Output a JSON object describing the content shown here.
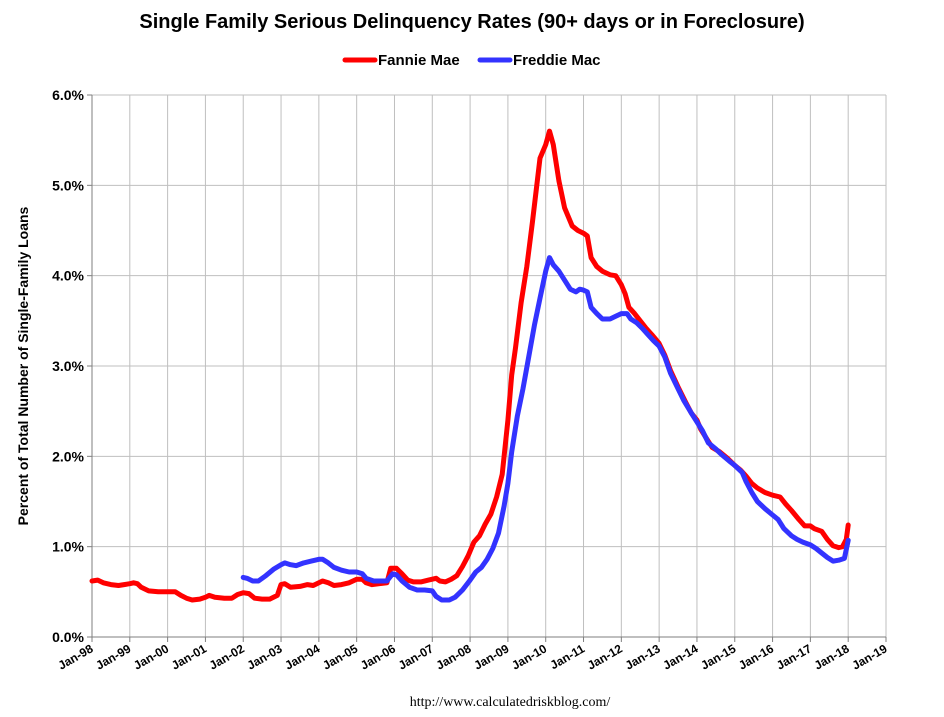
{
  "chart_data": {
    "type": "line",
    "title": "Single Family Serious Delinquency Rates (90+ days or in Foreclosure)",
    "xlabel": "",
    "ylabel": "Percent of Total Number of Single-Family Loans",
    "source": "http://www.calculatedriskblog.com/",
    "ylim": [
      0,
      6
    ],
    "xlim": [
      1998.0,
      2019.0
    ],
    "y_ticks": [
      "0.0%",
      "1.0%",
      "2.0%",
      "3.0%",
      "4.0%",
      "5.0%",
      "6.0%"
    ],
    "x_ticks": [
      "Jan-98",
      "Jan-99",
      "Jan-00",
      "Jan-01",
      "Jan-02",
      "Jan-03",
      "Jan-04",
      "Jan-05",
      "Jan-06",
      "Jan-07",
      "Jan-08",
      "Jan-09",
      "Jan-10",
      "Jan-11",
      "Jan-12",
      "Jan-13",
      "Jan-14",
      "Jan-15",
      "Jan-16",
      "Jan-17",
      "Jan-18",
      "Jan-19"
    ],
    "grid": true,
    "legend_position": "top-center",
    "series": [
      {
        "name": "Fannie Mae",
        "color": "#ff0000",
        "points": [
          [
            1998.0,
            0.62
          ],
          [
            1998.15,
            0.63
          ],
          [
            1998.3,
            0.6
          ],
          [
            1998.5,
            0.58
          ],
          [
            1998.7,
            0.57
          ],
          [
            1998.85,
            0.58
          ],
          [
            1999.0,
            0.59
          ],
          [
            1999.1,
            0.6
          ],
          [
            1999.2,
            0.59
          ],
          [
            1999.3,
            0.55
          ],
          [
            1999.5,
            0.51
          ],
          [
            1999.75,
            0.5
          ],
          [
            2000.0,
            0.5
          ],
          [
            2000.2,
            0.5
          ],
          [
            2000.35,
            0.46
          ],
          [
            2000.5,
            0.43
          ],
          [
            2000.65,
            0.41
          ],
          [
            2000.85,
            0.42
          ],
          [
            2001.0,
            0.44
          ],
          [
            2001.1,
            0.46
          ],
          [
            2001.25,
            0.44
          ],
          [
            2001.5,
            0.43
          ],
          [
            2001.7,
            0.43
          ],
          [
            2001.85,
            0.47
          ],
          [
            2002.0,
            0.49
          ],
          [
            2002.15,
            0.48
          ],
          [
            2002.3,
            0.43
          ],
          [
            2002.5,
            0.42
          ],
          [
            2002.7,
            0.42
          ],
          [
            2002.9,
            0.46
          ],
          [
            2003.0,
            0.58
          ],
          [
            2003.1,
            0.59
          ],
          [
            2003.25,
            0.55
          ],
          [
            2003.5,
            0.56
          ],
          [
            2003.7,
            0.58
          ],
          [
            2003.85,
            0.57
          ],
          [
            2004.0,
            0.6
          ],
          [
            2004.1,
            0.62
          ],
          [
            2004.25,
            0.6
          ],
          [
            2004.4,
            0.57
          ],
          [
            2004.6,
            0.58
          ],
          [
            2004.8,
            0.6
          ],
          [
            2005.0,
            0.64
          ],
          [
            2005.15,
            0.64
          ],
          [
            2005.25,
            0.6
          ],
          [
            2005.4,
            0.58
          ],
          [
            2005.6,
            0.59
          ],
          [
            2005.8,
            0.6
          ],
          [
            2005.9,
            0.76
          ],
          [
            2006.05,
            0.76
          ],
          [
            2006.2,
            0.7
          ],
          [
            2006.35,
            0.63
          ],
          [
            2006.5,
            0.61
          ],
          [
            2006.7,
            0.61
          ],
          [
            2006.9,
            0.63
          ],
          [
            2007.0,
            0.64
          ],
          [
            2007.1,
            0.65
          ],
          [
            2007.2,
            0.62
          ],
          [
            2007.35,
            0.61
          ],
          [
            2007.5,
            0.64
          ],
          [
            2007.65,
            0.68
          ],
          [
            2007.8,
            0.78
          ],
          [
            2007.95,
            0.9
          ],
          [
            2008.1,
            1.05
          ],
          [
            2008.25,
            1.12
          ],
          [
            2008.4,
            1.25
          ],
          [
            2008.55,
            1.36
          ],
          [
            2008.7,
            1.55
          ],
          [
            2008.85,
            1.8
          ],
          [
            2009.0,
            2.4
          ],
          [
            2009.1,
            2.9
          ],
          [
            2009.2,
            3.2
          ],
          [
            2009.35,
            3.7
          ],
          [
            2009.5,
            4.1
          ],
          [
            2009.65,
            4.6
          ],
          [
            2009.85,
            5.3
          ],
          [
            2010.0,
            5.45
          ],
          [
            2010.1,
            5.6
          ],
          [
            2010.2,
            5.45
          ],
          [
            2010.35,
            5.05
          ],
          [
            2010.5,
            4.75
          ],
          [
            2010.7,
            4.55
          ],
          [
            2010.85,
            4.5
          ],
          [
            2011.0,
            4.47
          ],
          [
            2011.1,
            4.44
          ],
          [
            2011.2,
            4.2
          ],
          [
            2011.35,
            4.1
          ],
          [
            2011.5,
            4.05
          ],
          [
            2011.7,
            4.01
          ],
          [
            2011.85,
            4.0
          ],
          [
            2012.0,
            3.9
          ],
          [
            2012.1,
            3.8
          ],
          [
            2012.2,
            3.65
          ],
          [
            2012.35,
            3.58
          ],
          [
            2012.5,
            3.5
          ],
          [
            2012.65,
            3.42
          ],
          [
            2012.8,
            3.35
          ],
          [
            2012.9,
            3.3
          ],
          [
            2013.0,
            3.25
          ],
          [
            2013.15,
            3.12
          ],
          [
            2013.3,
            2.95
          ],
          [
            2013.5,
            2.77
          ],
          [
            2013.7,
            2.6
          ],
          [
            2013.85,
            2.48
          ],
          [
            2014.0,
            2.4
          ],
          [
            2014.1,
            2.3
          ],
          [
            2014.25,
            2.2
          ],
          [
            2014.4,
            2.1
          ],
          [
            2014.6,
            2.05
          ],
          [
            2014.8,
            1.98
          ],
          [
            2015.0,
            1.9
          ],
          [
            2015.15,
            1.85
          ],
          [
            2015.3,
            1.78
          ],
          [
            2015.45,
            1.7
          ],
          [
            2015.6,
            1.65
          ],
          [
            2015.8,
            1.6
          ],
          [
            2016.0,
            1.57
          ],
          [
            2016.2,
            1.55
          ],
          [
            2016.35,
            1.47
          ],
          [
            2016.5,
            1.4
          ],
          [
            2016.7,
            1.3
          ],
          [
            2016.85,
            1.23
          ],
          [
            2017.0,
            1.23
          ],
          [
            2017.1,
            1.2
          ],
          [
            2017.3,
            1.17
          ],
          [
            2017.45,
            1.08
          ],
          [
            2017.6,
            1.01
          ],
          [
            2017.75,
            0.99
          ],
          [
            2017.85,
            1.0
          ],
          [
            2017.95,
            1.08
          ],
          [
            2018.0,
            1.24
          ]
        ]
      },
      {
        "name": "Freddie Mac",
        "color": "#3333ff",
        "points": [
          [
            2002.0,
            0.66
          ],
          [
            2002.1,
            0.65
          ],
          [
            2002.25,
            0.62
          ],
          [
            2002.4,
            0.62
          ],
          [
            2002.6,
            0.68
          ],
          [
            2002.8,
            0.75
          ],
          [
            2003.0,
            0.8
          ],
          [
            2003.1,
            0.82
          ],
          [
            2003.25,
            0.8
          ],
          [
            2003.4,
            0.79
          ],
          [
            2003.6,
            0.82
          ],
          [
            2003.8,
            0.84
          ],
          [
            2004.0,
            0.86
          ],
          [
            2004.1,
            0.86
          ],
          [
            2004.25,
            0.82
          ],
          [
            2004.4,
            0.77
          ],
          [
            2004.6,
            0.74
          ],
          [
            2004.8,
            0.72
          ],
          [
            2005.0,
            0.72
          ],
          [
            2005.15,
            0.7
          ],
          [
            2005.25,
            0.65
          ],
          [
            2005.45,
            0.62
          ],
          [
            2005.65,
            0.62
          ],
          [
            2005.8,
            0.62
          ],
          [
            2005.95,
            0.7
          ],
          [
            2006.05,
            0.69
          ],
          [
            2006.2,
            0.62
          ],
          [
            2006.4,
            0.55
          ],
          [
            2006.6,
            0.52
          ],
          [
            2006.8,
            0.52
          ],
          [
            2007.0,
            0.51
          ],
          [
            2007.1,
            0.45
          ],
          [
            2007.25,
            0.41
          ],
          [
            2007.45,
            0.41
          ],
          [
            2007.6,
            0.44
          ],
          [
            2007.8,
            0.52
          ],
          [
            2008.0,
            0.63
          ],
          [
            2008.15,
            0.72
          ],
          [
            2008.3,
            0.77
          ],
          [
            2008.45,
            0.86
          ],
          [
            2008.6,
            0.98
          ],
          [
            2008.75,
            1.15
          ],
          [
            2008.9,
            1.45
          ],
          [
            2009.0,
            1.7
          ],
          [
            2009.1,
            2.05
          ],
          [
            2009.25,
            2.45
          ],
          [
            2009.4,
            2.75
          ],
          [
            2009.55,
            3.1
          ],
          [
            2009.7,
            3.45
          ],
          [
            2009.85,
            3.75
          ],
          [
            2010.0,
            4.05
          ],
          [
            2010.1,
            4.2
          ],
          [
            2010.2,
            4.12
          ],
          [
            2010.35,
            4.05
          ],
          [
            2010.5,
            3.95
          ],
          [
            2010.65,
            3.85
          ],
          [
            2010.8,
            3.82
          ],
          [
            2010.9,
            3.85
          ],
          [
            2011.0,
            3.84
          ],
          [
            2011.1,
            3.82
          ],
          [
            2011.2,
            3.65
          ],
          [
            2011.35,
            3.58
          ],
          [
            2011.5,
            3.52
          ],
          [
            2011.7,
            3.52
          ],
          [
            2011.85,
            3.55
          ],
          [
            2012.0,
            3.58
          ],
          [
            2012.15,
            3.58
          ],
          [
            2012.25,
            3.52
          ],
          [
            2012.4,
            3.48
          ],
          [
            2012.55,
            3.42
          ],
          [
            2012.7,
            3.35
          ],
          [
            2012.85,
            3.28
          ],
          [
            2013.0,
            3.22
          ],
          [
            2013.15,
            3.1
          ],
          [
            2013.3,
            2.92
          ],
          [
            2013.5,
            2.75
          ],
          [
            2013.65,
            2.62
          ],
          [
            2013.85,
            2.48
          ],
          [
            2014.0,
            2.38
          ],
          [
            2014.15,
            2.28
          ],
          [
            2014.3,
            2.15
          ],
          [
            2014.5,
            2.08
          ],
          [
            2014.65,
            2.02
          ],
          [
            2014.85,
            1.95
          ],
          [
            2015.0,
            1.9
          ],
          [
            2015.2,
            1.82
          ],
          [
            2015.3,
            1.72
          ],
          [
            2015.45,
            1.6
          ],
          [
            2015.6,
            1.5
          ],
          [
            2015.8,
            1.42
          ],
          [
            2016.0,
            1.35
          ],
          [
            2016.15,
            1.3
          ],
          [
            2016.3,
            1.2
          ],
          [
            2016.5,
            1.12
          ],
          [
            2016.65,
            1.08
          ],
          [
            2016.8,
            1.05
          ],
          [
            2017.0,
            1.02
          ],
          [
            2017.15,
            0.98
          ],
          [
            2017.3,
            0.93
          ],
          [
            2017.45,
            0.88
          ],
          [
            2017.6,
            0.84
          ],
          [
            2017.75,
            0.85
          ],
          [
            2017.9,
            0.87
          ],
          [
            2018.0,
            1.07
          ]
        ]
      }
    ]
  }
}
